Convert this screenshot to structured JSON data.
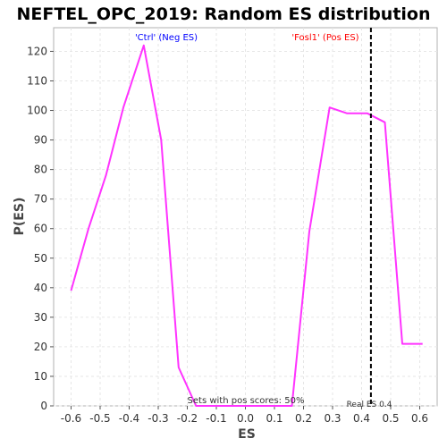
{
  "chart_data": {
    "type": "line",
    "title": "NEFTEL_OPC_2019: Random ES distribution",
    "xlabel": "ES",
    "ylabel": "P(ES)",
    "xlim": [
      -0.66,
      0.66
    ],
    "ylim": [
      0,
      128
    ],
    "xticks": [
      "-0.6",
      "-0.5",
      "-0.4",
      "-0.3",
      "-0.2",
      "-0.1",
      "0.0",
      "0.1",
      "0.2",
      "0.3",
      "0.4",
      "0.5",
      "0.6"
    ],
    "yticks": [
      "0",
      "10",
      "20",
      "30",
      "40",
      "50",
      "60",
      "70",
      "80",
      "90",
      "100",
      "110",
      "120"
    ],
    "grid": true,
    "series": [
      {
        "color": "#ff33ff",
        "points": [
          [
            -0.6,
            39
          ],
          [
            -0.54,
            60
          ],
          [
            -0.48,
            78
          ],
          [
            -0.42,
            101
          ],
          [
            -0.35,
            122
          ],
          [
            -0.29,
            90
          ],
          [
            -0.23,
            13
          ],
          [
            -0.17,
            0
          ],
          [
            0.16,
            0
          ],
          [
            0.22,
            59
          ],
          [
            0.29,
            101
          ],
          [
            0.35,
            99
          ],
          [
            0.42,
            99
          ],
          [
            0.48,
            96
          ],
          [
            0.54,
            21
          ],
          [
            0.61,
            21
          ]
        ]
      }
    ],
    "annotations": {
      "neg_label": "'Ctrl' (Neg ES)",
      "pos_label": "'Fosl1' (Pos ES)",
      "pos_scores": "Sets with pos scores: 50%",
      "real_es_label": "Real ES 0.4",
      "real_es": 0.432
    },
    "colors": {
      "neg_label": "#0000ff",
      "pos_label": "#ff0000",
      "line": "#ff33ff",
      "real_es_line": "#000000"
    }
  }
}
